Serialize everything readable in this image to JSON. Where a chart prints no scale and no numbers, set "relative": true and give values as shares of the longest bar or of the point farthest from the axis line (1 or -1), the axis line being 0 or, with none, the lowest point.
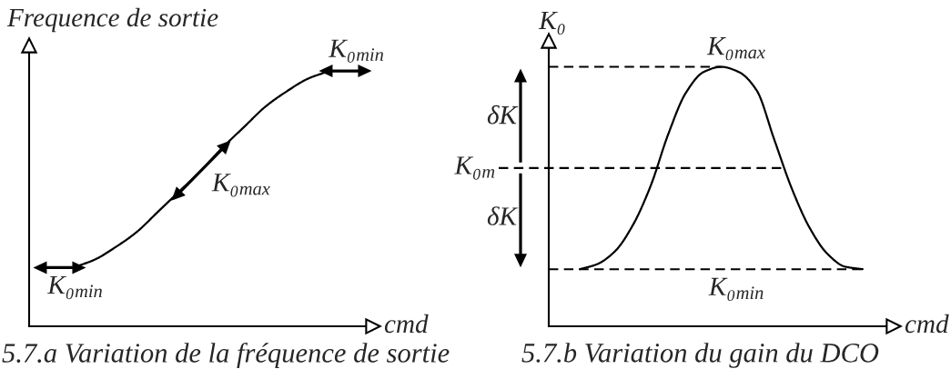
{
  "chart_data": [
    {
      "type": "line",
      "relative": true,
      "ylabel": "Frequence de sortie",
      "xlabel": "cmd",
      "tick_labels": false,
      "line_style": "solid",
      "categories": [
        null,
        null,
        null,
        null,
        null,
        null,
        null,
        null,
        null,
        null,
        null,
        null,
        null
      ],
      "series": [
        {
          "color": "#000000",
          "values": [
            0.23,
            0.26,
            0.31,
            0.37,
            0.45,
            0.53,
            0.61,
            0.7,
            0.78,
            0.86,
            0.92,
            0.97,
            1.0
          ]
        }
      ],
      "annotations": [
        "K₀$_{min}$",
        "K₀$_{max}$",
        "K₀$_{min}$",
        "5.7.a Variation de la fréquence de sortie"
      ]
    },
    {
      "type": "line",
      "relative": true,
      "ylabel": "K₀",
      "xlabel": "cmd",
      "tick_labels": false,
      "line_style": "solid",
      "categories": [
        null,
        null,
        null,
        null,
        null,
        null,
        null,
        null,
        null,
        null,
        null,
        null,
        null,
        null,
        null,
        null,
        null
      ],
      "series": [
        {
          "color": "#000000",
          "values": [
            0.22,
            0.24,
            0.29,
            0.39,
            0.54,
            0.74,
            0.9,
            0.98,
            1.0,
            0.98,
            0.91,
            0.72,
            0.53,
            0.38,
            0.28,
            0.23,
            0.22
          ]
        }
      ],
      "ref_lines": [
        {
          "axis": "y",
          "value": 1.0,
          "label": "K₀$_{max}$",
          "line_style": "dashed",
          "color": "#000000"
        },
        {
          "axis": "y",
          "value": 0.61,
          "label": "K₀$_{m}$",
          "line_style": "dashed",
          "color": "#000000"
        },
        {
          "axis": "y",
          "value": 0.22,
          "label": "K₀$_{min}$",
          "line_style": "dashed",
          "color": "#000000"
        }
      ],
      "annotations": [
        "δK",
        "δK",
        "5.7.b Variation du gain du DCO"
      ]
    }
  ]
}
